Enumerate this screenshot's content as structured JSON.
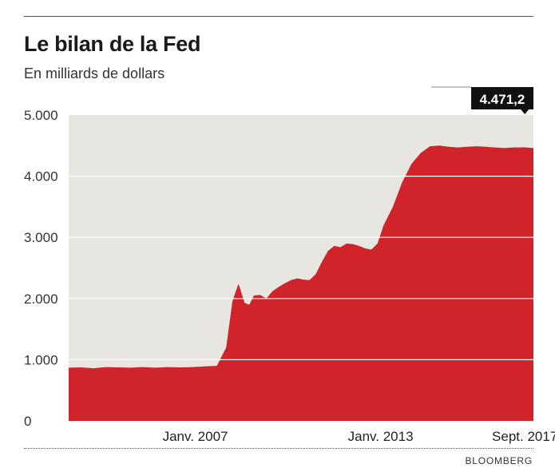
{
  "header": {
    "title": "Le bilan de la Fed",
    "subtitle": "En milliards de dollars"
  },
  "source": "BLOOMBERG",
  "chart_data": {
    "type": "area",
    "title": "Le bilan de la Fed",
    "subtitle": "En milliards de dollars",
    "xlabel": "",
    "ylabel": "",
    "ylim": [
      0,
      5000
    ],
    "xlim": [
      2002.9,
      2017.95
    ],
    "grid": true,
    "legend": "none",
    "yticks": [
      0,
      1000,
      2000,
      3000,
      4000,
      5000
    ],
    "ytick_labels": [
      "0",
      "1.000",
      "2.000",
      "3.000",
      "4.000",
      "5.000"
    ],
    "xticks": [
      {
        "x": 2007.0,
        "label": "Janv. 2007"
      },
      {
        "x": 2013.0,
        "label": "Janv. 2013"
      },
      {
        "x": 2017.67,
        "label": "Sept. 2017"
      }
    ],
    "callout": {
      "x": 2017.67,
      "y": 4471.2,
      "label": "4.471,2"
    },
    "colors": {
      "area": "#d1232a",
      "plot_background": "#e8e6e0",
      "callout_background": "#111111",
      "grid": "#ffffff"
    },
    "series": [
      {
        "x": [
          2002.9,
          2003.3,
          2003.7,
          2004.1,
          2004.5,
          2004.9,
          2005.3,
          2005.7,
          2006.1,
          2006.5,
          2006.9,
          2007.3,
          2007.7,
          2008.0,
          2008.2,
          2008.3,
          2008.4,
          2008.6,
          2008.75,
          2008.9,
          2009.1,
          2009.3,
          2009.5,
          2009.7,
          2009.9,
          2010.1,
          2010.3,
          2010.5,
          2010.7,
          2010.9,
          2011.1,
          2011.3,
          2011.5,
          2011.7,
          2011.9,
          2012.1,
          2012.3,
          2012.5,
          2012.7,
          2012.9,
          2013.1,
          2013.4,
          2013.7,
          2014.0,
          2014.3,
          2014.6,
          2014.9,
          2015.2,
          2015.5,
          2015.8,
          2016.1,
          2016.4,
          2016.7,
          2017.0,
          2017.3,
          2017.67,
          2017.95
        ],
        "y": [
          870,
          875,
          860,
          880,
          875,
          870,
          880,
          870,
          880,
          875,
          880,
          890,
          900,
          1200,
          1950,
          2100,
          2240,
          1930,
          1900,
          2050,
          2060,
          2000,
          2120,
          2190,
          2250,
          2300,
          2330,
          2310,
          2300,
          2400,
          2600,
          2780,
          2860,
          2840,
          2900,
          2890,
          2860,
          2820,
          2800,
          2900,
          3200,
          3500,
          3900,
          4200,
          4380,
          4490,
          4500,
          4480,
          4470,
          4480,
          4490,
          4480,
          4470,
          4460,
          4470,
          4471.2,
          4460
        ]
      }
    ]
  }
}
